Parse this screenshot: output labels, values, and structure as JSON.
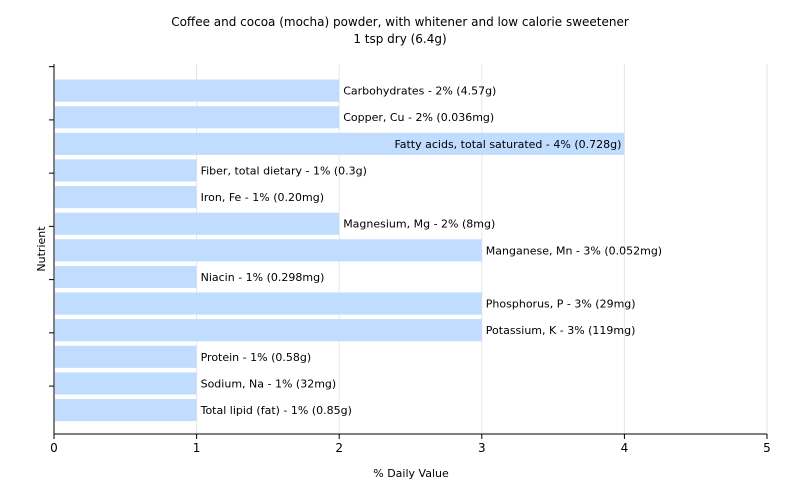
{
  "chart_data": {
    "type": "bar",
    "orientation": "horizontal",
    "title": "Coffee and cocoa (mocha) powder, with whitener and low calorie sweetener",
    "subtitle": "1 tsp dry (6.4g)",
    "xlabel": "% Daily Value",
    "ylabel": "Nutrient",
    "xlim": [
      0,
      5
    ],
    "xticks": [
      "0",
      "1",
      "2",
      "3",
      "4",
      "5"
    ],
    "grid": true,
    "bar_color": "#c0dcff",
    "categories": [
      "Carbohydrates",
      "Copper, Cu",
      "Fatty acids, total saturated",
      "Fiber, total dietary",
      "Iron, Fe",
      "Magnesium, Mg",
      "Manganese, Mn",
      "Niacin",
      "Phosphorus, P",
      "Potassium, K",
      "Protein",
      "Sodium, Na",
      "Total lipid (fat)"
    ],
    "values": [
      2,
      2,
      4,
      1,
      1,
      2,
      3,
      1,
      3,
      3,
      1,
      1,
      1
    ],
    "labels": [
      "Carbohydrates - 2% (4.57g)",
      "Copper, Cu - 2% (0.036mg)",
      "Fatty acids, total saturated - 4% (0.728g)",
      "Fiber, total dietary - 1% (0.3g)",
      "Iron, Fe - 1% (0.20mg)",
      "Magnesium, Mg - 2% (8mg)",
      "Manganese, Mn - 3% (0.052mg)",
      "Niacin - 1% (0.298mg)",
      "Phosphorus, P - 3% (29mg)",
      "Potassium, K - 3% (119mg)",
      "Protein - 1% (0.58g)",
      "Sodium, Na - 1% (32mg)",
      "Total lipid (fat) - 1% (0.85g)"
    ]
  }
}
